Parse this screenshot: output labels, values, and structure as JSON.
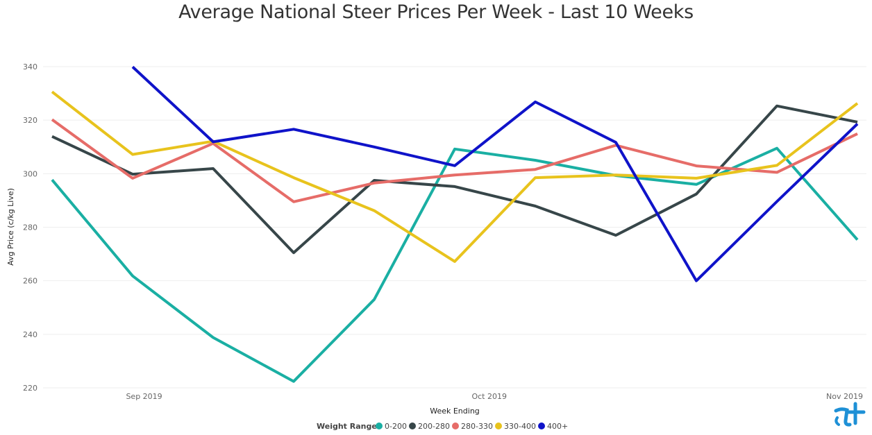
{
  "chart_data": {
    "type": "line",
    "title": "Average National Steer Prices Per Week - Last 10 Weeks",
    "xlabel": "Week Ending",
    "ylabel": "Avg Price (c/kg Live)",
    "ylim": [
      220,
      340
    ],
    "yticks": [
      220,
      240,
      260,
      280,
      300,
      320,
      340
    ],
    "xticks": [
      "Sep 2019",
      "Oct 2019",
      "Nov 2019"
    ],
    "x": [
      "2019-08-24",
      "2019-08-31",
      "2019-09-07",
      "2019-09-14",
      "2019-09-21",
      "2019-09-28",
      "2019-10-05",
      "2019-10-12",
      "2019-10-19",
      "2019-10-26",
      "2019-11-02"
    ],
    "grid": true,
    "legend": {
      "title": "Weight Range",
      "position": "bottom"
    },
    "series": [
      {
        "name": "0-200",
        "color": "#1aafa3",
        "values": [
          297.7,
          261.8,
          238.8,
          222.4,
          253.0,
          309.2,
          305.0,
          299.3,
          296.0,
          309.5,
          275.3
        ]
      },
      {
        "name": "200-280",
        "color": "#374649",
        "values": [
          313.9,
          299.8,
          301.9,
          270.5,
          297.5,
          295.2,
          287.9,
          277.0,
          292.4,
          325.3,
          319.3
        ]
      },
      {
        "name": "280-330",
        "color": "#e66c68",
        "values": [
          320.2,
          298.3,
          311.3,
          289.5,
          296.5,
          299.5,
          301.6,
          310.6,
          302.9,
          300.5,
          314.9
        ]
      },
      {
        "name": "330-400",
        "color": "#e8c31d",
        "values": [
          330.6,
          307.2,
          312.1,
          298.5,
          286.2,
          267.2,
          298.5,
          299.5,
          298.3,
          303.1,
          326.3
        ]
      },
      {
        "name": "400+",
        "color": "#0f13c9",
        "values": [
          null,
          339.9,
          311.9,
          316.6,
          310.0,
          303.0,
          326.8,
          311.7,
          260.0,
          289.6,
          318.6
        ]
      }
    ]
  }
}
